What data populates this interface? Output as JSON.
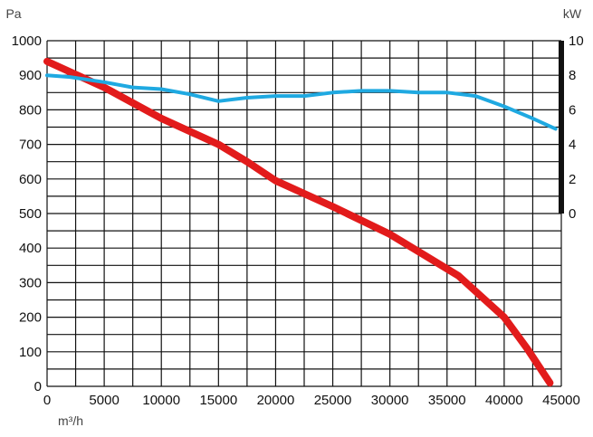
{
  "chart_data": {
    "type": "line",
    "title": "",
    "xlabel": "m³/h",
    "ylabel_left": "Pa",
    "ylabel_right": "kW",
    "x_ticks": [
      "0",
      "5000",
      "10000",
      "15000",
      "20000",
      "25000",
      "30000",
      "35000",
      "40000",
      "45000"
    ],
    "y_left_ticks": [
      "0",
      "100",
      "200",
      "300",
      "400",
      "500",
      "600",
      "700",
      "800",
      "900",
      "1000"
    ],
    "y_right_ticks": [
      "0",
      "2",
      "4",
      "6",
      "8",
      "10"
    ],
    "xlim": [
      0,
      45000
    ],
    "ylim_left": [
      0,
      1000
    ],
    "ylim_right": [
      0,
      10
    ],
    "grid": true,
    "colors": {
      "pressure": "#e21b1b",
      "power": "#1fa9e1",
      "right_axis": "#111111",
      "grid": "#111111"
    },
    "series": [
      {
        "axis": "left",
        "x": [
          0,
          5000,
          10000,
          15000,
          17500,
          20000,
          25000,
          30000,
          33000,
          36000,
          38000,
          40000,
          42000,
          44000
        ],
        "y": [
          940,
          865,
          775,
          700,
          650,
          595,
          520,
          440,
          380,
          320,
          260,
          200,
          110,
          10
        ]
      },
      {
        "axis": "right",
        "x": [
          0,
          2000,
          5000,
          7500,
          10000,
          12500,
          15000,
          17500,
          20000,
          22500,
          25000,
          27500,
          30000,
          32500,
          35000,
          37500,
          40000,
          42500,
          44500
        ],
        "y": [
          8.0,
          7.9,
          7.6,
          7.3,
          7.2,
          6.9,
          6.5,
          6.7,
          6.8,
          6.8,
          7.0,
          7.1,
          7.1,
          7.0,
          7.0,
          6.8,
          6.2,
          5.5,
          4.9
        ]
      }
    ]
  }
}
